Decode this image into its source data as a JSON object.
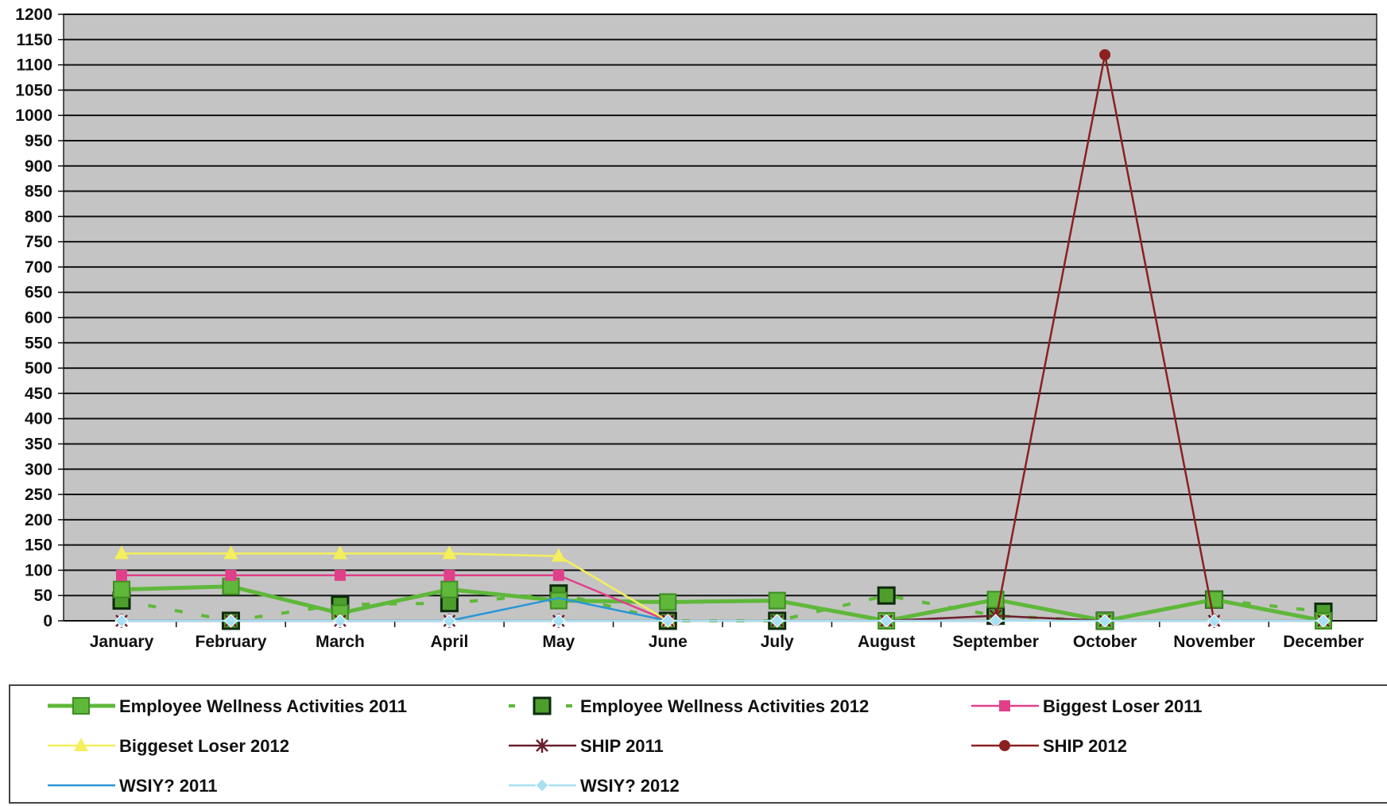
{
  "chart_data": {
    "type": "line",
    "title": "",
    "xlabel": "",
    "ylabel": "",
    "ylim": [
      0,
      1200
    ],
    "ytick_step": 50,
    "grid": true,
    "legend_position": "bottom",
    "plot_background": "#c4c4c4",
    "gridline_color": "#111111",
    "categories": [
      "January",
      "February",
      "March",
      "April",
      "May",
      "June",
      "July",
      "August",
      "September",
      "October",
      "November",
      "December"
    ],
    "series": [
      {
        "name": "Employee Wellness Activities 2011",
        "color": "#5fb83a",
        "style": "solid-thick",
        "marker": "square-filled",
        "values": [
          62,
          68,
          15,
          62,
          40,
          37,
          40,
          0,
          42,
          0,
          42,
          0
        ]
      },
      {
        "name": "Employee Wellness Activities 2012",
        "color": "#5fb83a",
        "style": "dashed",
        "marker": "square-dark",
        "values": [
          40,
          0,
          32,
          35,
          54,
          0,
          0,
          50,
          10,
          0,
          42,
          18
        ]
      },
      {
        "name": "Biggest Loser 2011",
        "color": "#e0408a",
        "style": "solid",
        "marker": "square-pink",
        "values": [
          90,
          90,
          90,
          90,
          90,
          0,
          null,
          null,
          null,
          null,
          null,
          null
        ]
      },
      {
        "name": "Biggeset Loser 2012",
        "color": "#f4ef5a",
        "style": "solid",
        "marker": "triangle",
        "values": [
          133,
          133,
          133,
          133,
          128,
          0,
          null,
          null,
          null,
          null,
          null,
          null
        ]
      },
      {
        "name": "SHIP 2011",
        "color": "#6b1f2e",
        "style": "solid",
        "marker": "star",
        "values": [
          0,
          0,
          0,
          0,
          0,
          0,
          0,
          0,
          10,
          0,
          0,
          0
        ]
      },
      {
        "name": "SHIP 2012",
        "color": "#8b2020",
        "style": "solid",
        "marker": "circle",
        "values": [
          null,
          null,
          null,
          null,
          null,
          null,
          null,
          0,
          0,
          1120,
          0,
          null
        ]
      },
      {
        "name": "WSIY? 2011",
        "color": "#2a96d8",
        "style": "solid",
        "marker": "none",
        "values": [
          0,
          0,
          0,
          0,
          45,
          0,
          null,
          null,
          null,
          null,
          null,
          null
        ]
      },
      {
        "name": "WSIY? 2012",
        "color": "#a8dff2",
        "style": "solid",
        "marker": "diamond",
        "values": [
          0,
          0,
          0,
          0,
          0,
          0,
          0,
          0,
          0,
          0,
          0,
          0
        ]
      }
    ]
  }
}
